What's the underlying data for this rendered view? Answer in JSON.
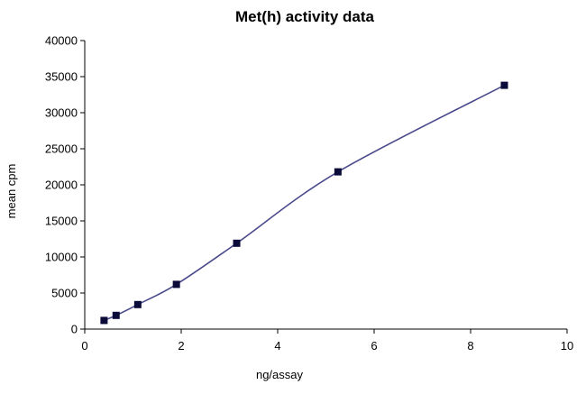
{
  "chart_data": {
    "type": "scatter",
    "title": "Met(h) activity data",
    "xlabel": "ng/assay",
    "ylabel": "mean cpm",
    "xlim": [
      0,
      10
    ],
    "ylim": [
      0,
      40000
    ],
    "x_ticks": [
      0,
      2,
      4,
      6,
      8,
      10
    ],
    "y_ticks": [
      0,
      5000,
      10000,
      15000,
      20000,
      25000,
      30000,
      35000,
      40000
    ],
    "grid": false,
    "legend": "none",
    "smooth_line": true,
    "series": [
      {
        "x": [
          0.4,
          0.65,
          1.1,
          1.9,
          3.15,
          5.25,
          8.7
        ],
        "y": [
          1200,
          1900,
          3400,
          6200,
          11900,
          21800,
          33800
        ]
      }
    ],
    "colors": {
      "line": "#4a4a8c",
      "marker": "#0b0b3a",
      "axis": "#000000"
    }
  }
}
